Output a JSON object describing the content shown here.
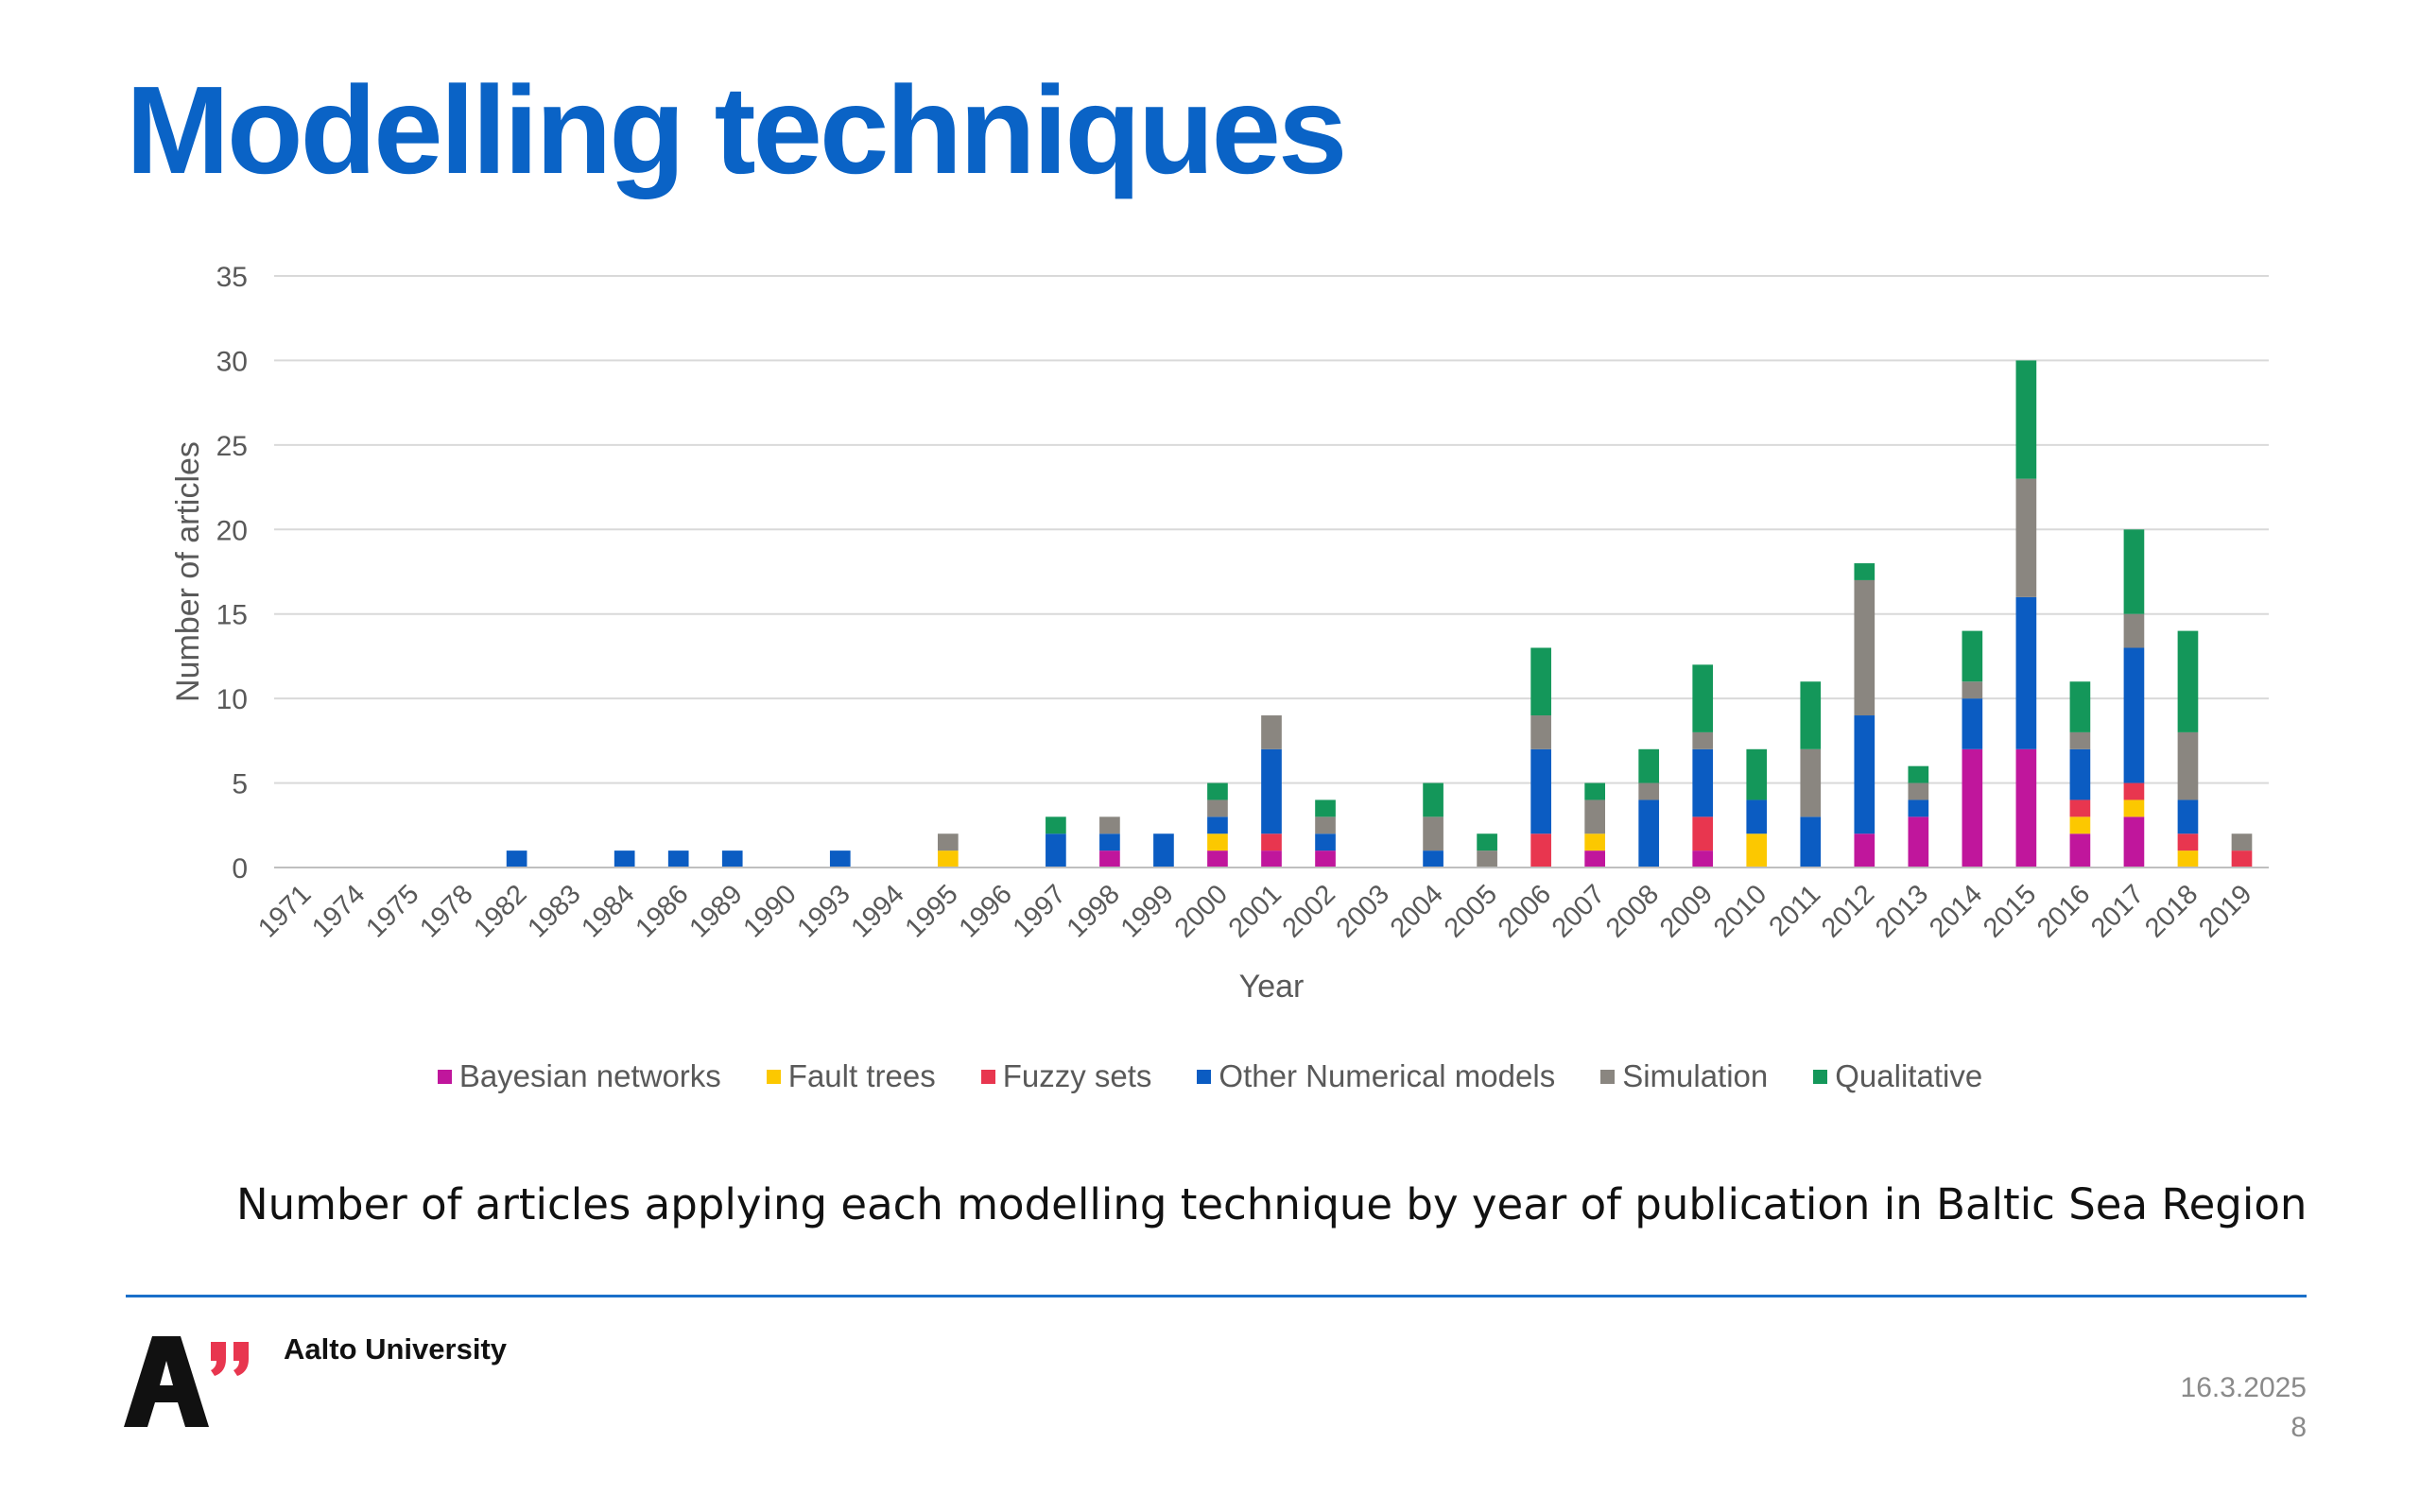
{
  "slide": {
    "title": "Modelling techniques",
    "caption": "Number of articles applying each modelling technique by year of publication in Baltic Sea Region",
    "org_name": "Aalto University",
    "date": "16.3.2025",
    "page_number": "8"
  },
  "chart_data": {
    "type": "bar",
    "stacked": true,
    "title": "",
    "xlabel": "Year",
    "ylabel": "Number of articles",
    "ylim": [
      0,
      35
    ],
    "yticks": [
      0,
      5,
      10,
      15,
      20,
      25,
      30,
      35
    ],
    "grid": true,
    "legend_position": "bottom",
    "categories": [
      "1971",
      "1974",
      "1975",
      "1978",
      "1982",
      "1983",
      "1984",
      "1986",
      "1989",
      "1990",
      "1993",
      "1994",
      "1995",
      "1996",
      "1997",
      "1998",
      "1999",
      "2000",
      "2001",
      "2002",
      "2003",
      "2004",
      "2005",
      "2006",
      "2007",
      "2008",
      "2009",
      "2010",
      "2011",
      "2012",
      "2013",
      "2014",
      "2015",
      "2016",
      "2017",
      "2018",
      "2019"
    ],
    "series": [
      {
        "name": "Bayesian networks",
        "color": "#c0169c",
        "values": [
          0,
          0,
          0,
          0,
          0,
          0,
          0,
          0,
          0,
          0,
          0,
          0,
          0,
          0,
          0,
          1,
          0,
          1,
          1,
          1,
          0,
          0,
          0,
          0,
          1,
          0,
          1,
          0,
          0,
          2,
          3,
          7,
          7,
          2,
          3,
          0,
          0
        ]
      },
      {
        "name": "Fault trees",
        "color": "#fcc800",
        "values": [
          0,
          0,
          0,
          0,
          0,
          0,
          0,
          0,
          0,
          0,
          0,
          0,
          1,
          0,
          0,
          0,
          0,
          1,
          0,
          0,
          0,
          0,
          0,
          0,
          1,
          0,
          0,
          2,
          0,
          0,
          0,
          0,
          0,
          1,
          1,
          1,
          0
        ]
      },
      {
        "name": "Fuzzy sets",
        "color": "#e8364f",
        "values": [
          0,
          0,
          0,
          0,
          0,
          0,
          0,
          0,
          0,
          0,
          0,
          0,
          0,
          0,
          0,
          0,
          0,
          0,
          1,
          0,
          0,
          0,
          0,
          2,
          0,
          0,
          2,
          0,
          0,
          0,
          0,
          0,
          0,
          1,
          1,
          1,
          1
        ]
      },
      {
        "name": "Other Numerical models",
        "color": "#0b5cc2",
        "values": [
          0,
          0,
          0,
          0,
          1,
          0,
          1,
          1,
          1,
          0,
          1,
          0,
          0,
          0,
          2,
          1,
          2,
          1,
          5,
          1,
          0,
          1,
          0,
          5,
          0,
          4,
          4,
          2,
          3,
          7,
          1,
          3,
          9,
          3,
          8,
          2,
          0
        ]
      },
      {
        "name": "Simulation",
        "color": "#8a8680",
        "values": [
          0,
          0,
          0,
          0,
          0,
          0,
          0,
          0,
          0,
          0,
          0,
          0,
          1,
          0,
          0,
          1,
          0,
          1,
          2,
          1,
          0,
          2,
          1,
          2,
          2,
          1,
          1,
          0,
          4,
          8,
          1,
          1,
          7,
          1,
          2,
          4,
          1
        ]
      },
      {
        "name": "Qualitative",
        "color": "#14975a",
        "values": [
          0,
          0,
          0,
          0,
          0,
          0,
          0,
          0,
          0,
          0,
          0,
          0,
          0,
          0,
          1,
          0,
          0,
          1,
          0,
          1,
          0,
          2,
          1,
          4,
          1,
          2,
          4,
          3,
          4,
          1,
          1,
          3,
          7,
          3,
          5,
          6,
          0
        ]
      }
    ]
  }
}
